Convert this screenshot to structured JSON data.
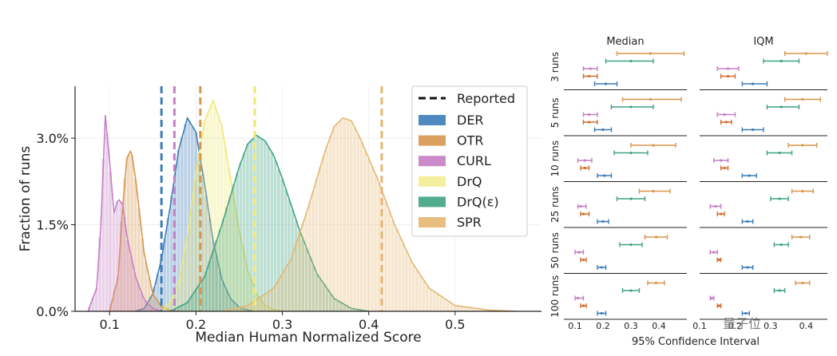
{
  "chart_data": [
    {
      "type": "area",
      "xlabel": "Median Human Normalized Score",
      "ylabel": "Fraction of runs",
      "xlim": [
        0.06,
        0.6
      ],
      "ylim": [
        0,
        3.9
      ],
      "x_ticks": [
        0.1,
        0.2,
        0.3,
        0.4,
        0.5
      ],
      "x_tick_labels": [
        "0.1",
        "0.2",
        "0.3",
        "0.4",
        "0.5"
      ],
      "y_ticks": [
        0,
        1.5,
        3.0
      ],
      "y_tick_labels": [
        "0.0%",
        "1.5%",
        "3.0%"
      ],
      "grid": true,
      "legend_position": "top-right",
      "legend_reported_label": "Reported",
      "series": [
        {
          "name": "DER",
          "color": "#3b7cb9",
          "reported": 0.16,
          "x": [
            0.13,
            0.14,
            0.15,
            0.16,
            0.17,
            0.18,
            0.19,
            0.2,
            0.21,
            0.22,
            0.23,
            0.24,
            0.25,
            0.26,
            0.27
          ],
          "y": [
            0,
            0.05,
            0.3,
            0.9,
            1.8,
            2.8,
            3.35,
            3.1,
            2.2,
            1.2,
            0.55,
            0.22,
            0.07,
            0.02,
            0
          ]
        },
        {
          "name": "OTR",
          "color": "#d7964c",
          "reported": 0.205,
          "x": [
            0.1,
            0.11,
            0.115,
            0.12,
            0.125,
            0.13,
            0.14,
            0.15,
            0.16,
            0.17,
            0.18
          ],
          "y": [
            0,
            0.6,
            1.8,
            2.65,
            2.8,
            2.3,
            1.0,
            0.3,
            0.08,
            0.02,
            0
          ]
        },
        {
          "name": "CURL",
          "color": "#c57ec4",
          "reported": 0.175,
          "x": [
            0.075,
            0.085,
            0.09,
            0.095,
            0.1,
            0.105,
            0.11,
            0.115,
            0.12,
            0.13,
            0.14,
            0.15,
            0.16
          ],
          "y": [
            0,
            0.4,
            1.5,
            3.4,
            2.6,
            1.7,
            1.95,
            1.85,
            1.3,
            0.6,
            0.2,
            0.05,
            0
          ]
        },
        {
          "name": "DrQ",
          "color": "#eee872",
          "reported": 0.268,
          "x": [
            0.16,
            0.17,
            0.18,
            0.19,
            0.2,
            0.21,
            0.22,
            0.23,
            0.24,
            0.25,
            0.26,
            0.27,
            0.28,
            0.29,
            0.3
          ],
          "y": [
            0,
            0.15,
            0.5,
            1.3,
            2.4,
            3.3,
            3.65,
            3.2,
            2.3,
            1.4,
            0.7,
            0.3,
            0.1,
            0.03,
            0
          ]
        },
        {
          "name": "DrQ(ε)",
          "color": "#3ea481",
          "reported": null,
          "x": [
            0.17,
            0.19,
            0.21,
            0.23,
            0.25,
            0.26,
            0.27,
            0.28,
            0.29,
            0.3,
            0.32,
            0.34,
            0.36,
            0.38,
            0.4
          ],
          "y": [
            0,
            0.15,
            0.6,
            1.5,
            2.5,
            2.9,
            3.05,
            2.95,
            2.7,
            2.3,
            1.4,
            0.65,
            0.22,
            0.05,
            0
          ]
        },
        {
          "name": "SPR",
          "color": "#e4b772",
          "reported": 0.415,
          "x": [
            0.23,
            0.26,
            0.29,
            0.31,
            0.33,
            0.35,
            0.36,
            0.37,
            0.38,
            0.39,
            0.41,
            0.43,
            0.45,
            0.47,
            0.5,
            0.54,
            0.57
          ],
          "y": [
            0,
            0.1,
            0.4,
            0.9,
            1.8,
            2.8,
            3.2,
            3.35,
            3.3,
            3.0,
            2.3,
            1.5,
            0.85,
            0.4,
            0.1,
            0.02,
            0
          ]
        }
      ]
    },
    {
      "type": "scatter",
      "xlabel": "95% Confidence Interval",
      "columns": [
        "Median",
        "IQM"
      ],
      "row_labels": [
        "3 runs",
        "5 runs",
        "10 runs",
        "25 runs",
        "50 runs",
        "100 runs"
      ],
      "x_ticks": [
        [
          0.1,
          0.2,
          0.3,
          0.4
        ],
        [
          0.1,
          0.2,
          0.3,
          0.4
        ]
      ],
      "x_tick_labels": [
        [
          "0.1",
          "0.2",
          "0.3",
          "0.4"
        ],
        [
          "0.1",
          "0.2",
          "0.3",
          "0.4"
        ]
      ],
      "xlim": [
        [
          0.06,
          0.5
        ],
        [
          0.1,
          0.46
        ]
      ],
      "series_order": [
        "SPR",
        "DrQ(ε)",
        "CURL",
        "OTR",
        "DER"
      ],
      "colors": [
        "#d7964c",
        "#3ea481",
        "#c57ec4",
        "#d46b2a",
        "#3b7cb9"
      ],
      "intervals": {
        "Median": [
          [
            [
              0.25,
              0.49,
              0.37
            ],
            [
              0.21,
              0.38,
              0.3
            ],
            [
              0.13,
              0.18,
              0.155
            ],
            [
              0.13,
              0.18,
              0.15
            ],
            [
              0.17,
              0.25,
              0.21
            ]
          ],
          [
            [
              0.27,
              0.48,
              0.37
            ],
            [
              0.23,
              0.38,
              0.3
            ],
            [
              0.13,
              0.18,
              0.15
            ],
            [
              0.13,
              0.18,
              0.15
            ],
            [
              0.17,
              0.23,
              0.2
            ]
          ],
          [
            [
              0.3,
              0.46,
              0.38
            ],
            [
              0.24,
              0.36,
              0.3
            ],
            [
              0.11,
              0.16,
              0.135
            ],
            [
              0.12,
              0.15,
              0.135
            ],
            [
              0.18,
              0.23,
              0.205
            ]
          ],
          [
            [
              0.33,
              0.44,
              0.38
            ],
            [
              0.25,
              0.35,
              0.3
            ],
            [
              0.11,
              0.14,
              0.12
            ],
            [
              0.12,
              0.15,
              0.13
            ],
            [
              0.18,
              0.22,
              0.2
            ]
          ],
          [
            [
              0.35,
              0.43,
              0.39
            ],
            [
              0.26,
              0.34,
              0.3
            ],
            [
              0.1,
              0.13,
              0.115
            ],
            [
              0.12,
              0.14,
              0.13
            ],
            [
              0.18,
              0.21,
              0.195
            ]
          ],
          [
            [
              0.36,
              0.42,
              0.39
            ],
            [
              0.27,
              0.33,
              0.3
            ],
            [
              0.1,
              0.13,
              0.11
            ],
            [
              0.12,
              0.14,
              0.13
            ],
            [
              0.18,
              0.21,
              0.195
            ]
          ]
        ],
        "IQM": [
          [
            [
              0.34,
              0.46,
              0.4
            ],
            [
              0.28,
              0.38,
              0.33
            ],
            [
              0.15,
              0.21,
              0.18
            ],
            [
              0.16,
              0.2,
              0.18
            ],
            [
              0.22,
              0.29,
              0.25
            ]
          ],
          [
            [
              0.34,
              0.44,
              0.39
            ],
            [
              0.29,
              0.38,
              0.33
            ],
            [
              0.15,
              0.2,
              0.17
            ],
            [
              0.16,
              0.19,
              0.175
            ],
            [
              0.22,
              0.28,
              0.25
            ]
          ],
          [
            [
              0.35,
              0.43,
              0.39
            ],
            [
              0.29,
              0.36,
              0.325
            ],
            [
              0.14,
              0.18,
              0.16
            ],
            [
              0.16,
              0.18,
              0.17
            ],
            [
              0.22,
              0.26,
              0.24
            ]
          ],
          [
            [
              0.36,
              0.42,
              0.39
            ],
            [
              0.3,
              0.35,
              0.325
            ],
            [
              0.13,
              0.16,
              0.145
            ],
            [
              0.15,
              0.17,
              0.16
            ],
            [
              0.22,
              0.25,
              0.235
            ]
          ],
          [
            [
              0.36,
              0.41,
              0.385
            ],
            [
              0.31,
              0.35,
              0.33
            ],
            [
              0.13,
              0.15,
              0.14
            ],
            [
              0.15,
              0.16,
              0.155
            ],
            [
              0.22,
              0.25,
              0.235
            ]
          ],
          [
            [
              0.37,
              0.41,
              0.39
            ],
            [
              0.31,
              0.34,
              0.325
            ],
            [
              0.13,
              0.14,
              0.135
            ],
            [
              0.15,
              0.16,
              0.155
            ],
            [
              0.22,
              0.24,
              0.23
            ]
          ]
        ]
      }
    }
  ],
  "watermark": "量子位"
}
